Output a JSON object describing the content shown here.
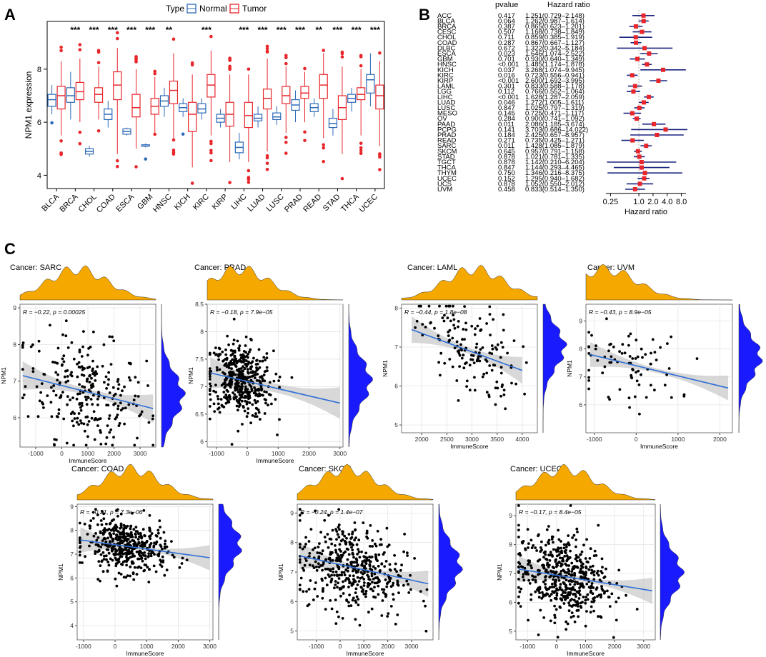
{
  "figure": {
    "panel_labels": [
      "A",
      "B",
      "C"
    ]
  },
  "chart_data": [
    {
      "id": "A",
      "type": "box",
      "ylabel": "NPM1 expression",
      "legend": {
        "title": "Type",
        "entries": [
          "Normal",
          "Tumor"
        ],
        "colors": [
          "#2d6ab7",
          "#e8262b"
        ],
        "placement": "top"
      },
      "ylim": [
        3.5,
        9.8
      ],
      "yticks": [
        4,
        6,
        8
      ],
      "categories": [
        "BLCA",
        "BRCA",
        "CHOL",
        "COAD",
        "ESCA",
        "GBM",
        "HNSC",
        "KICH",
        "KIRC",
        "KIRP",
        "LIHC",
        "LUAD",
        "LUSC",
        "PRAD",
        "READ",
        "STAD",
        "THCA",
        "UCEC"
      ],
      "significance": [
        "",
        "***",
        "***",
        "***",
        "***",
        "***",
        "**",
        "",
        "***",
        "",
        "***",
        "***",
        "***",
        "***",
        "**",
        "***",
        "***",
        "***"
      ],
      "series": [
        {
          "name": "Normal",
          "boxes": [
            [
              6.3,
              6.6,
              6.85,
              7.05,
              7.4
            ],
            [
              6.1,
              6.75,
              7.0,
              7.3,
              7.9
            ],
            [
              4.7,
              4.8,
              4.9,
              5.0,
              5.1
            ],
            [
              5.8,
              6.1,
              6.3,
              6.5,
              6.8
            ],
            [
              5.5,
              5.55,
              5.65,
              5.75,
              5.8
            ],
            [
              5.05,
              5.1,
              5.1,
              5.15,
              5.2
            ],
            [
              6.2,
              6.6,
              6.8,
              7.0,
              7.3
            ],
            [
              6.2,
              6.4,
              6.55,
              6.7,
              6.9
            ],
            [
              6.1,
              6.35,
              6.5,
              6.7,
              6.9
            ],
            [
              5.8,
              6.0,
              6.15,
              6.3,
              6.5
            ],
            [
              4.6,
              4.85,
              5.05,
              5.25,
              5.6
            ],
            [
              5.8,
              6.05,
              6.15,
              6.3,
              6.6
            ],
            [
              5.9,
              6.1,
              6.2,
              6.35,
              6.6
            ],
            [
              6.0,
              6.45,
              6.65,
              6.85,
              7.2
            ],
            [
              6.2,
              6.4,
              6.55,
              6.7,
              6.9
            ],
            [
              5.5,
              5.8,
              5.95,
              6.15,
              6.5
            ],
            [
              6.4,
              6.75,
              6.9,
              7.05,
              7.3
            ],
            [
              6.6,
              7.1,
              7.6,
              7.8,
              8.6
            ]
          ]
        },
        {
          "name": "Tumor",
          "boxes": [
            [
              5.5,
              6.5,
              7.0,
              7.35,
              8.3
            ],
            [
              6.0,
              6.85,
              7.15,
              7.5,
              8.4
            ],
            [
              6.1,
              6.75,
              7.05,
              7.3,
              8.1
            ],
            [
              4.8,
              6.85,
              7.4,
              7.9,
              8.8
            ],
            [
              5.0,
              6.2,
              6.55,
              7.05,
              8.0
            ],
            [
              5.6,
              6.3,
              6.6,
              6.9,
              7.7
            ],
            [
              5.4,
              6.7,
              7.2,
              7.55,
              8.6
            ],
            [
              4.3,
              5.65,
              6.3,
              6.75,
              7.8
            ],
            [
              5.5,
              6.95,
              7.4,
              7.8,
              8.7
            ],
            [
              4.5,
              5.85,
              6.3,
              6.75,
              7.8
            ],
            [
              4.5,
              5.8,
              6.25,
              6.75,
              7.8
            ],
            [
              4.9,
              6.5,
              6.9,
              7.25,
              8.4
            ],
            [
              5.6,
              6.7,
              7.0,
              7.35,
              8.1
            ],
            [
              6.0,
              6.9,
              7.1,
              7.35,
              7.9
            ],
            [
              5.4,
              6.9,
              7.4,
              7.8,
              8.6
            ],
            [
              4.8,
              6.1,
              6.55,
              7.0,
              8.1
            ],
            [
              5.5,
              6.85,
              7.05,
              7.3,
              8.0
            ],
            [
              5.1,
              6.5,
              7.0,
              7.4,
              8.3
            ]
          ]
        }
      ]
    },
    {
      "id": "B",
      "type": "forest",
      "column_headers": [
        "pvalue",
        "Hazard ratio"
      ],
      "xlabel": "Hazard ratio",
      "xscale": "log",
      "xlim": [
        0.2,
        10.0
      ],
      "xticks": [
        "0.25",
        "1.0",
        "2.0",
        "4.0",
        "8.0"
      ],
      "xtick_values": [
        0.25,
        1.0,
        2.0,
        4.0,
        8.0
      ],
      "reference_line": 1.0,
      "rows": [
        {
          "cancer": "ACC",
          "pvalue": "0.417",
          "hr_text": "1.251(0.729–2.148)",
          "hr": 1.251,
          "lo": 0.729,
          "hi": 2.148
        },
        {
          "cancer": "BLCA",
          "pvalue": "0.064",
          "hr_text": "1.262(0.987–1.614)",
          "hr": 1.262,
          "lo": 0.987,
          "hi": 1.614
        },
        {
          "cancer": "BRCA",
          "pvalue": "0.387",
          "hr_text": "0.865(0.623–1.201)",
          "hr": 0.865,
          "lo": 0.623,
          "hi": 1.201
        },
        {
          "cancer": "CESC",
          "pvalue": "0.507",
          "hr_text": "1.168(0.738–1.849)",
          "hr": 1.168,
          "lo": 0.738,
          "hi": 1.849
        },
        {
          "cancer": "CHOL",
          "pvalue": "0.711",
          "hr_text": "0.859(0.385–1.919)",
          "hr": 0.859,
          "lo": 0.385,
          "hi": 1.919
        },
        {
          "cancer": "COAD",
          "pvalue": "0.287",
          "hr_text": "0.867(0.667–1.127)",
          "hr": 0.867,
          "lo": 0.667,
          "hi": 1.127
        },
        {
          "cancer": "DLBC",
          "pvalue": "0.672",
          "hr_text": "1.322(0.342–5.184)",
          "hr": 1.322,
          "lo": 0.342,
          "hi": 5.184
        },
        {
          "cancer": "ESCA",
          "pvalue": "0.023",
          "hr_text": "1.646(1.074–2.522)",
          "hr": 1.646,
          "lo": 1.074,
          "hi": 2.522
        },
        {
          "cancer": "GBM",
          "pvalue": "0.701",
          "hr_text": "0.930(0.640–1.349)",
          "hr": 0.93,
          "lo": 0.64,
          "hi": 1.349
        },
        {
          "cancer": "HNSC",
          "pvalue": "<0.001",
          "hr_text": "1.485(1.174–1.878)",
          "hr": 1.485,
          "lo": 1.174,
          "hi": 1.878
        },
        {
          "cancer": "KICH",
          "pvalue": "0.037",
          "hr_text": "3.268(1.074–9.945)",
          "hr": 3.268,
          "lo": 1.074,
          "hi": 9.945
        },
        {
          "cancer": "KIRC",
          "pvalue": "0.016",
          "hr_text": "0.723(0.556–0.941)",
          "hr": 0.723,
          "lo": 0.556,
          "hi": 0.941
        },
        {
          "cancer": "KIRP",
          "pvalue": "<0.001",
          "hr_text": "2.600(1.692–3.995)",
          "hr": 2.6,
          "lo": 1.692,
          "hi": 3.995
        },
        {
          "cancer": "LAML",
          "pvalue": "0.301",
          "hr_text": "0.833(0.588–1.178)",
          "hr": 0.833,
          "lo": 0.588,
          "hi": 1.178
        },
        {
          "cancer": "LGG",
          "pvalue": "0.112",
          "hr_text": "0.766(0.552–1.064)",
          "hr": 0.766,
          "lo": 0.552,
          "hi": 1.064
        },
        {
          "cancer": "LIHC",
          "pvalue": "<0.001",
          "hr_text": "1.628(1.287–2.059)",
          "hr": 1.628,
          "lo": 1.287,
          "hi": 2.059
        },
        {
          "cancer": "LUAD",
          "pvalue": "0.046",
          "hr_text": "1.272(1.005–1.611)",
          "hr": 1.272,
          "lo": 1.005,
          "hi": 1.611
        },
        {
          "cancer": "LUSC",
          "pvalue": "0.847",
          "hr_text": "1.025(0.797–1.319)",
          "hr": 1.025,
          "lo": 0.797,
          "hi": 1.319
        },
        {
          "cancer": "MESO",
          "pvalue": "0.145",
          "hr_text": "0.725(0.471–1.117)",
          "hr": 0.725,
          "lo": 0.471,
          "hi": 1.117
        },
        {
          "cancer": "OV",
          "pvalue": "0.284",
          "hr_text": "0.900(0.741–1.092)",
          "hr": 0.9,
          "lo": 0.741,
          "hi": 1.092
        },
        {
          "cancer": "PAAD",
          "pvalue": "0.011",
          "hr_text": "2.086(1.185–3.674)",
          "hr": 2.086,
          "lo": 1.185,
          "hi": 3.674
        },
        {
          "cancer": "PCPG",
          "pvalue": "0.141",
          "hr_text": "3.703(0.686–14.022)",
          "hr": 3.703,
          "lo": 0.686,
          "hi": 14.022
        },
        {
          "cancer": "PRAD",
          "pvalue": "0.184",
          "hr_text": "2.425(0.657–8.957)",
          "hr": 2.425,
          "lo": 0.657,
          "hi": 8.957
        },
        {
          "cancer": "READ",
          "pvalue": "0.271",
          "hr_text": "0.735(0.425–1.271)",
          "hr": 0.735,
          "lo": 0.425,
          "hi": 1.271
        },
        {
          "cancer": "SARC",
          "pvalue": "0.011",
          "hr_text": "1.428(1.085–1.879)",
          "hr": 1.428,
          "lo": 1.085,
          "hi": 1.879
        },
        {
          "cancer": "SKCM",
          "pvalue": "0.645",
          "hr_text": "0.957(0.791–1.158)",
          "hr": 0.957,
          "lo": 0.791,
          "hi": 1.158
        },
        {
          "cancer": "STAD",
          "pvalue": "0.878",
          "hr_text": "1.021(0.781–1.335)",
          "hr": 1.021,
          "lo": 0.781,
          "hi": 1.335
        },
        {
          "cancer": "TGCT",
          "pvalue": "0.878",
          "hr_text": "1.142(0.210–6.204)",
          "hr": 1.142,
          "lo": 0.21,
          "hi": 6.204
        },
        {
          "cancer": "THCA",
          "pvalue": "0.847",
          "hr_text": "1.144(0.293–4.465)",
          "hr": 1.144,
          "lo": 0.293,
          "hi": 4.465
        },
        {
          "cancer": "THYM",
          "pvalue": "0.750",
          "hr_text": "1.346(0.216–8.375)",
          "hr": 1.346,
          "lo": 0.216,
          "hi": 8.375
        },
        {
          "cancer": "UCEC",
          "pvalue": "0.152",
          "hr_text": "1.295(0.940–1.682)",
          "hr": 1.295,
          "lo": 0.94,
          "hi": 1.682
        },
        {
          "cancer": "UCS",
          "pvalue": "0.878",
          "hr_text": "1.052(0.550–2.012)",
          "hr": 1.052,
          "lo": 0.55,
          "hi": 2.012
        },
        {
          "cancer": "UVM",
          "pvalue": "0.458",
          "hr_text": "0.833(0.514–1.350)",
          "hr": 0.833,
          "lo": 0.514,
          "hi": 1.35
        }
      ]
    },
    {
      "id": "C",
      "type": "scatter",
      "xlabel": "ImmuneScore",
      "ylabel": "NPM1",
      "marginal_colors": {
        "x": "#f5a800",
        "y": "#1a1aff"
      },
      "fit_color": "#2f6fd6",
      "panels": [
        {
          "title": "Cancer: SARC",
          "annotation": "R = −0.22, p = 0.00025",
          "xlim": [
            -1600,
            3600
          ],
          "ylim": [
            5.2,
            9.1
          ],
          "xticks": [
            -1000,
            0,
            1000,
            2000,
            3000
          ],
          "yticks": [
            6,
            7,
            8,
            9
          ],
          "fit": [
            [
              -1500,
              7.15
            ],
            [
              3500,
              6.25
            ]
          ],
          "n": 260,
          "x_mean": 900,
          "x_sd": 1150,
          "y_sd": 0.72,
          "marg_x_peak": 600,
          "marg_y_peak": 6.6
        },
        {
          "title": "Cancer: PRAD",
          "annotation": "R = −0.18, p = 7.9e−05",
          "xlim": [
            -1300,
            3100
          ],
          "ylim": [
            5.9,
            8.5
          ],
          "xticks": [
            -1000,
            0,
            1000,
            2000,
            3000
          ],
          "yticks": [
            6.0,
            6.5,
            7.0,
            7.5,
            8.0,
            8.5
          ],
          "fit": [
            [
              -1200,
              7.25
            ],
            [
              3000,
              6.7
            ]
          ],
          "n": 450,
          "x_mean": -200,
          "x_sd": 520,
          "y_sd": 0.33,
          "marg_x_peak": -250,
          "marg_y_peak": 7.1
        },
        {
          "title": "Cancer: LAML",
          "annotation": "R = −0.44, p = 1.8e−08",
          "xlim": [
            1600,
            4300
          ],
          "ylim": [
            4.8,
            8.1
          ],
          "xticks": [
            2000,
            2500,
            3000,
            3500,
            4000
          ],
          "yticks": [
            5,
            6,
            7,
            8
          ],
          "fit": [
            [
              1800,
              7.45
            ],
            [
              4000,
              6.4
            ]
          ],
          "n": 150,
          "x_mean": 2950,
          "x_sd": 480,
          "y_sd": 0.62,
          "marg_x_peak": 3050,
          "marg_y_peak": 7.0
        },
        {
          "title": "Cancer: UVM",
          "annotation": "R = −0.43, p = 8.9e−05",
          "xlim": [
            -1200,
            2300
          ],
          "ylim": [
            5.0,
            9.6
          ],
          "xticks": [
            -1000,
            0,
            1000,
            2000
          ],
          "yticks": [
            6,
            7,
            8,
            9
          ],
          "fit": [
            [
              -1100,
              7.8
            ],
            [
              2200,
              6.6
            ]
          ],
          "n": 80,
          "x_mean": -250,
          "x_sd": 650,
          "y_sd": 0.65,
          "marg_x_peak": -750,
          "marg_y_peak": 7.7
        },
        {
          "title": "Cancer: COAD",
          "annotation": "R = −0.21, p = 7.3e−06",
          "xlim": [
            -1200,
            3100
          ],
          "ylim": [
            3.4,
            9.1
          ],
          "xticks": [
            -1000,
            0,
            1000,
            2000,
            3000
          ],
          "yticks": [
            4,
            5,
            6,
            7,
            8,
            9
          ],
          "fit": [
            [
              -1100,
              7.6
            ],
            [
              3000,
              6.85
            ]
          ],
          "n": 450,
          "x_mean": 350,
          "x_sd": 650,
          "y_sd": 0.55,
          "marg_x_peak": 500,
          "marg_y_peak": 7.4
        },
        {
          "title": "Cancer: SKCM",
          "annotation": "R = −0.24, p = 1.4e−07",
          "xlim": [
            -1800,
            3900
          ],
          "ylim": [
            4.7,
            9.3
          ],
          "xticks": [
            -1000,
            0,
            1000,
            2000,
            3000
          ],
          "yticks": [
            5,
            6,
            7,
            8,
            9
          ],
          "fit": [
            [
              -1700,
              7.55
            ],
            [
              3700,
              6.6
            ]
          ],
          "n": 470,
          "x_mean": 500,
          "x_sd": 1100,
          "y_sd": 0.75,
          "marg_x_peak": 300,
          "marg_y_peak": 7.2
        },
        {
          "title": "Cancer: UCEC",
          "annotation": "R = −0.17, p = 8.4e−05",
          "xlim": [
            -1400,
            3400
          ],
          "ylim": [
            4.7,
            9.4
          ],
          "xticks": [
            -1000,
            0,
            1000,
            2000,
            3000
          ],
          "yticks": [
            5,
            6,
            7,
            8,
            9
          ],
          "fit": [
            [
              -1300,
              7.15
            ],
            [
              3300,
              6.4
            ]
          ],
          "n": 520,
          "x_mean": 200,
          "x_sd": 780,
          "y_sd": 0.72,
          "marg_x_peak": 300,
          "marg_y_peak": 7.0
        }
      ]
    }
  ]
}
